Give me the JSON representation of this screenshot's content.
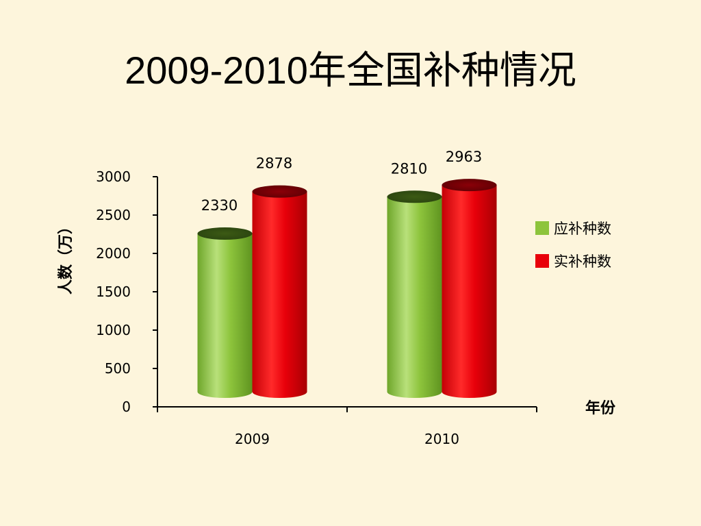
{
  "slide": {
    "title": "2009-2010年全国补种情况"
  },
  "chart_data": {
    "type": "bar",
    "style": "3d-cylinder",
    "title": "2009-2010年全国补种情况",
    "xlabel": "年份",
    "ylabel": "人数（万）",
    "categories": [
      "2009",
      "2010"
    ],
    "series": [
      {
        "name": "应补种数",
        "values": [
          2330,
          2810
        ],
        "color": "#8dc43c"
      },
      {
        "name": "实补种数",
        "values": [
          2878,
          2963
        ],
        "color": "#e8000a"
      }
    ],
    "ylim": [
      0,
      3000
    ],
    "yticks": [
      0,
      500,
      1000,
      1500,
      2000,
      2500,
      3000
    ],
    "legend": "right",
    "grid": false
  }
}
